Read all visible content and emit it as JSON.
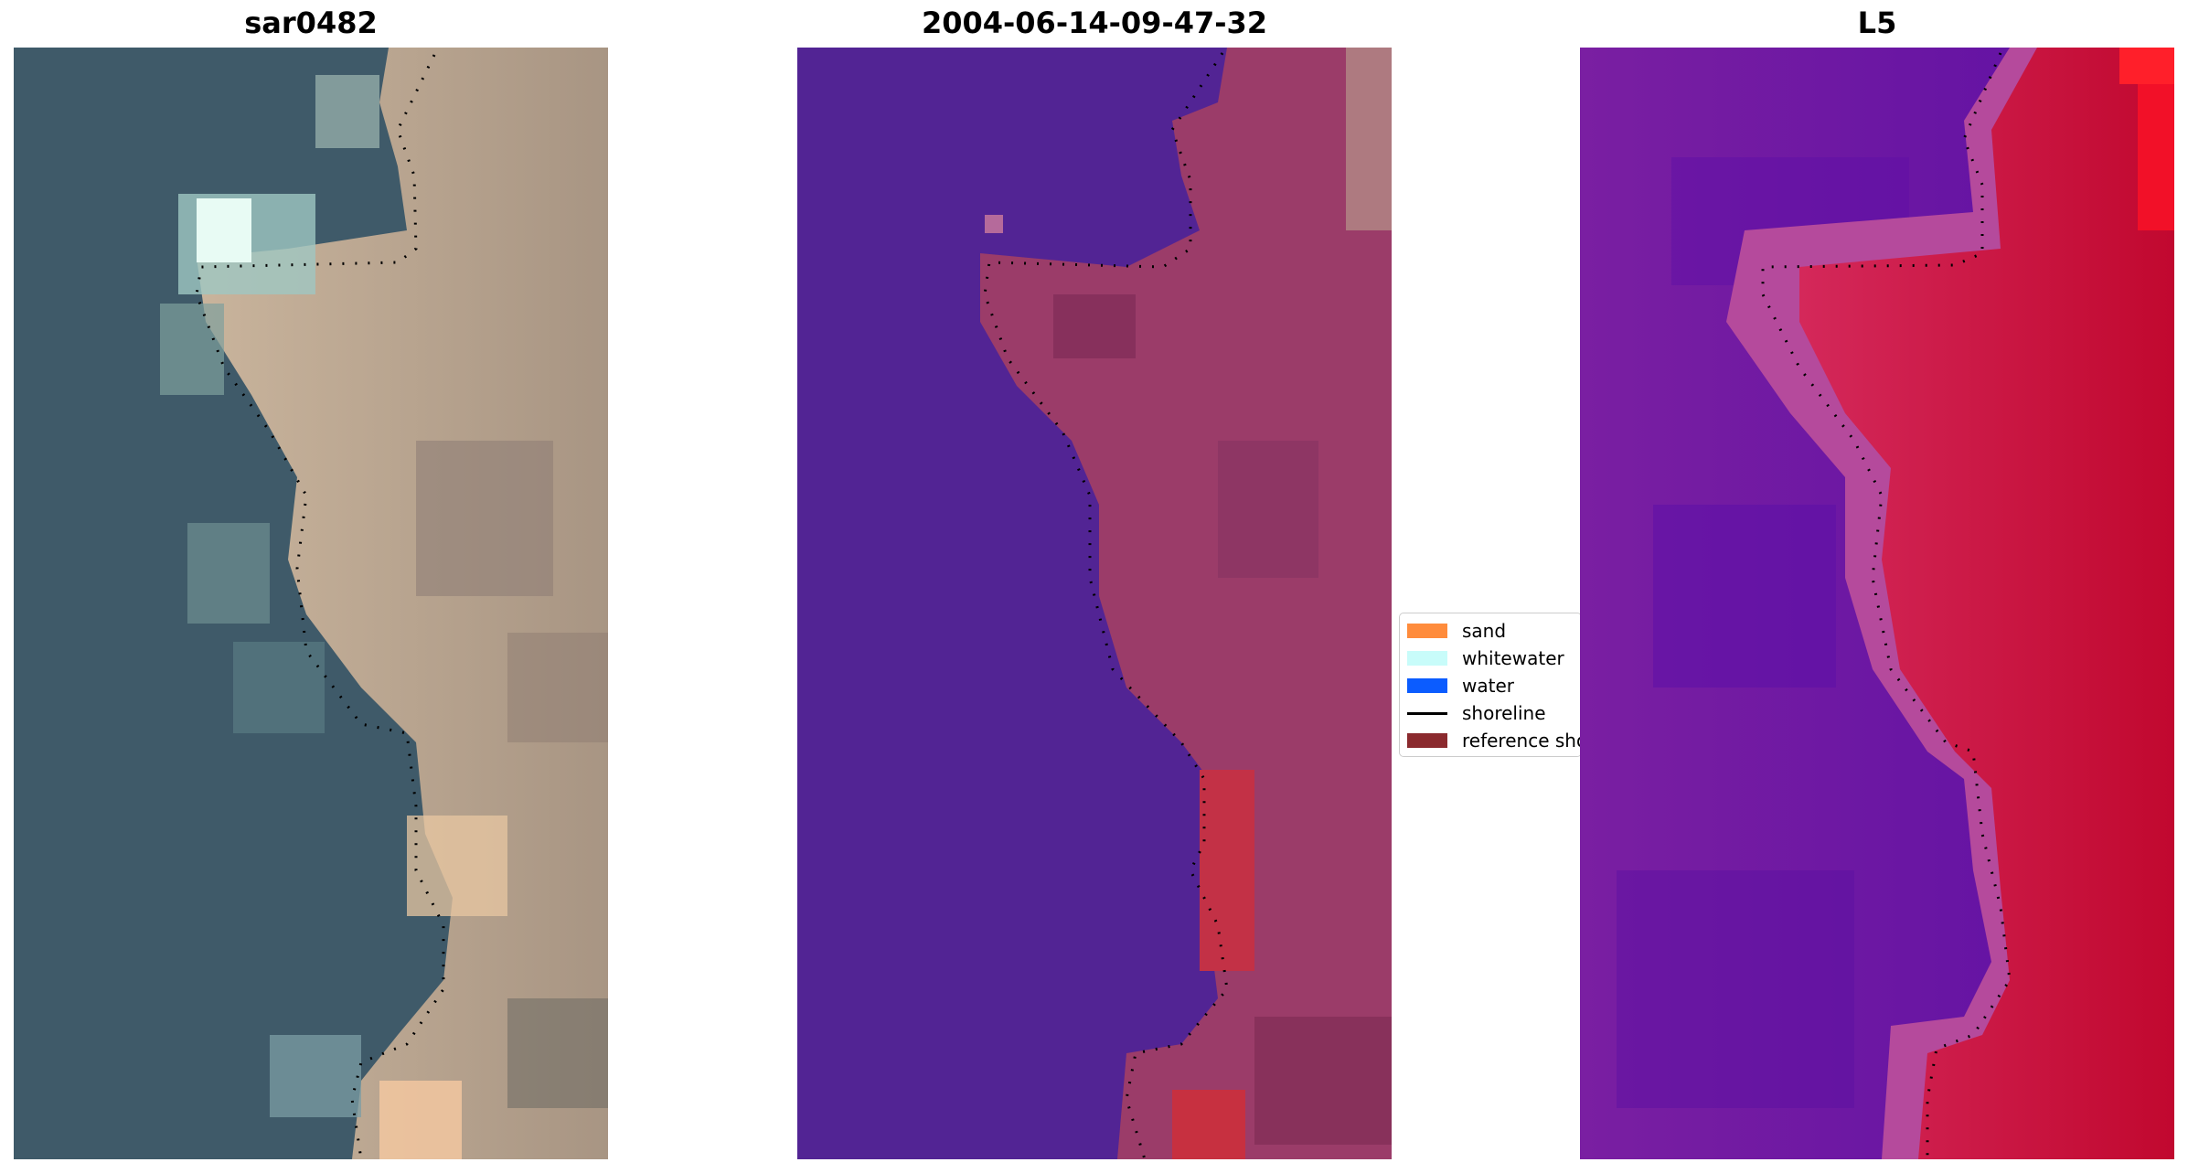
{
  "panels": [
    {
      "title": "sar0482"
    },
    {
      "title": "2004-06-14-09-47-32"
    },
    {
      "title": "L5"
    }
  ],
  "legend": {
    "items": [
      {
        "label": "sand",
        "color": "#ff8c3c",
        "kind": "patch"
      },
      {
        "label": "whitewater",
        "color": "#c8fcfa",
        "kind": "patch"
      },
      {
        "label": "water",
        "color": "#0b5cff",
        "kind": "patch"
      },
      {
        "label": "shoreline",
        "color": "#000000",
        "kind": "line"
      },
      {
        "label": "reference shoreline",
        "color": "#8b2a2e",
        "kind": "patch"
      }
    ]
  },
  "colors": {
    "ocean_rgb": "#3f5b6a",
    "land_rgb": "#b9a58f",
    "water_class": "#522494",
    "land_class": "#9c3d6a",
    "index_low": "#6a0fa8",
    "index_high": "#c20a3a"
  }
}
